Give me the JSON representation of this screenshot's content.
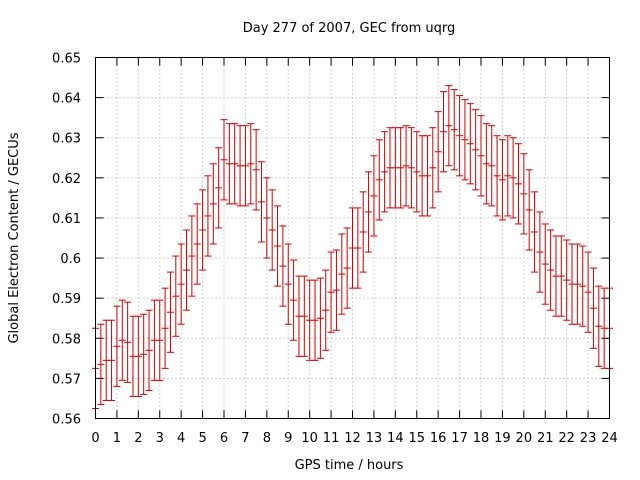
{
  "chart_data": {
    "type": "scatter",
    "title": "Day 277 of 2007, GEC from uqrg",
    "xlabel": "GPS time / hours",
    "ylabel": "Global Electron Content / GECUs",
    "xlim": [
      0,
      24
    ],
    "ylim": [
      0.56,
      0.65
    ],
    "xticks": [
      0,
      1,
      2,
      3,
      4,
      5,
      6,
      7,
      8,
      9,
      10,
      11,
      12,
      13,
      14,
      15,
      16,
      17,
      18,
      19,
      20,
      21,
      22,
      23,
      24
    ],
    "yticks": [
      0.56,
      0.57,
      0.58,
      0.59,
      0.6,
      0.61,
      0.62,
      0.63,
      0.64,
      0.65
    ],
    "ytick_labels": [
      "0.56",
      "0.57",
      "0.58",
      "0.59",
      "0.6",
      "0.61",
      "0.62",
      "0.63",
      "0.64",
      "0.65"
    ],
    "grid": true,
    "error_bar": 0.01,
    "color": "#cc0000",
    "x": [
      0,
      0.25,
      0.5,
      0.75,
      1,
      1.25,
      1.5,
      1.75,
      2,
      2.25,
      2.5,
      2.75,
      3,
      3.25,
      3.5,
      3.75,
      4,
      4.25,
      4.5,
      4.75,
      5,
      5.25,
      5.5,
      5.75,
      6,
      6.25,
      6.5,
      6.75,
      7,
      7.25,
      7.5,
      7.75,
      8,
      8.25,
      8.5,
      8.75,
      9,
      9.25,
      9.5,
      9.75,
      10,
      10.25,
      10.5,
      10.75,
      11,
      11.25,
      11.5,
      11.75,
      12,
      12.25,
      12.5,
      12.75,
      13,
      13.25,
      13.5,
      13.75,
      14,
      14.25,
      14.5,
      14.75,
      15,
      15.25,
      15.5,
      15.75,
      16,
      16.25,
      16.5,
      16.75,
      17,
      17.25,
      17.5,
      17.75,
      18,
      18.25,
      18.5,
      18.75,
      19,
      19.25,
      19.5,
      19.75,
      20,
      20.25,
      20.5,
      20.75,
      21,
      21.25,
      21.5,
      21.75,
      22,
      22.25,
      22.5,
      22.75,
      23,
      23.25,
      23.5,
      23.75,
      24
    ],
    "y": [
      0.5725,
      0.5735,
      0.5745,
      0.5745,
      0.578,
      0.5795,
      0.579,
      0.5755,
      0.5755,
      0.576,
      0.577,
      0.5795,
      0.5795,
      0.5825,
      0.5865,
      0.5905,
      0.5935,
      0.597,
      0.6005,
      0.6035,
      0.607,
      0.6105,
      0.6135,
      0.6175,
      0.6245,
      0.6235,
      0.6235,
      0.623,
      0.623,
      0.6235,
      0.622,
      0.614,
      0.61,
      0.607,
      0.603,
      0.598,
      0.5935,
      0.5895,
      0.5855,
      0.5855,
      0.5845,
      0.5845,
      0.585,
      0.587,
      0.5915,
      0.592,
      0.596,
      0.5975,
      0.6025,
      0.6025,
      0.6065,
      0.6115,
      0.6155,
      0.6195,
      0.6215,
      0.6225,
      0.6225,
      0.6225,
      0.623,
      0.6225,
      0.6215,
      0.6205,
      0.6205,
      0.6225,
      0.6265,
      0.6315,
      0.633,
      0.632,
      0.6305,
      0.6295,
      0.6285,
      0.627,
      0.6255,
      0.6235,
      0.623,
      0.6205,
      0.6195,
      0.6205,
      0.62,
      0.6185,
      0.616,
      0.612,
      0.6065,
      0.6015,
      0.5985,
      0.597,
      0.5955,
      0.5955,
      0.5945,
      0.5935,
      0.5935,
      0.593,
      0.5915,
      0.5875,
      0.583,
      0.5825,
      0.5825
    ]
  }
}
